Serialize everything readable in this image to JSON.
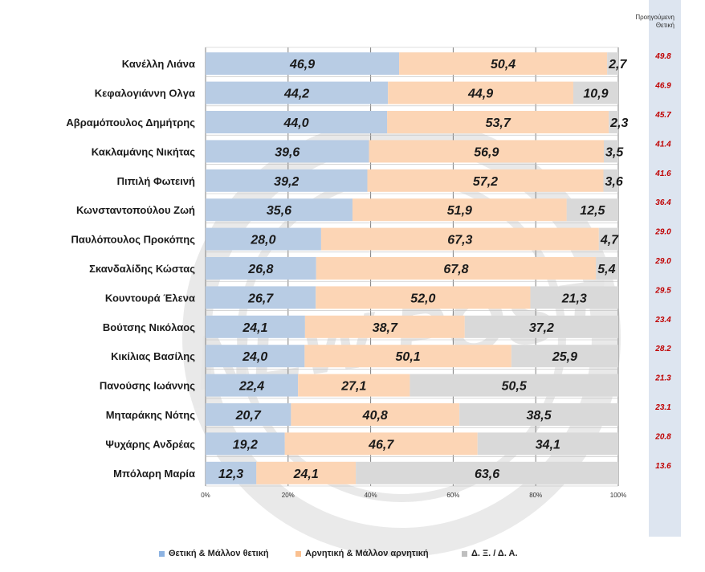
{
  "chart_data": {
    "type": "bar",
    "stacked": true,
    "orientation": "horizontal",
    "categories": [
      "Κανέλλη Λιάνα",
      "Κεφαλογιάννη Ολγα",
      "Αβραμόπουλος Δημήτρης",
      "Κακλαμάνης Νικήτας",
      "Πιπιλή Φωτεινή",
      "Κωνσταντοπούλου Ζωή",
      "Παυλόπουλος Προκόπης",
      "Σκανδαλίδης Κώστας",
      "Κουντουρά Έλενα",
      "Βούτσης Νικόλαος",
      "Κικίλιας Βασίλης",
      "Πανούσης Ιωάννης",
      "Μηταράκης Νότης",
      "Ψυχάρης Ανδρέας",
      "Μπόλαρη Μαρία"
    ],
    "series": [
      {
        "name": "Θετική & Μάλλον θετική",
        "color": "#b8cce4",
        "values": [
          46.9,
          44.2,
          44.0,
          39.6,
          39.2,
          35.6,
          28.0,
          26.8,
          26.7,
          24.1,
          24.0,
          22.4,
          20.7,
          19.2,
          12.3
        ],
        "labels": [
          "46,9",
          "44,2",
          "44,0",
          "39,6",
          "39,2",
          "35,6",
          "28,0",
          "26,8",
          "26,7",
          "24,1",
          "24,0",
          "22,4",
          "20,7",
          "19,2",
          "12,3"
        ]
      },
      {
        "name": "Αρνητική & Μάλλον αρνητική",
        "color": "#fcd5b5",
        "values": [
          50.4,
          44.9,
          53.7,
          56.9,
          57.2,
          51.9,
          67.3,
          67.8,
          52.0,
          38.7,
          50.1,
          27.1,
          40.8,
          46.7,
          24.1
        ],
        "labels": [
          "50,4",
          "44,9",
          "53,7",
          "56,9",
          "57,2",
          "51,9",
          "67,3",
          "67,8",
          "52,0",
          "38,7",
          "50,1",
          "27,1",
          "40,8",
          "46,7",
          "24,1"
        ]
      },
      {
        "name": "Δ. Ξ. / Δ. Α.",
        "color": "#d9d9d9",
        "values": [
          2.7,
          10.9,
          2.3,
          3.5,
          3.6,
          12.5,
          4.7,
          5.4,
          21.3,
          37.2,
          25.9,
          50.5,
          38.5,
          34.1,
          63.6
        ],
        "labels": [
          "2,7",
          "10,9",
          "2,3",
          "3,5",
          "3,6",
          "12,5",
          "4,7",
          "5,4",
          "21,3",
          "37,2",
          "25,9",
          "50,5",
          "38,5",
          "34,1",
          "63,6"
        ]
      }
    ],
    "xlim": [
      0,
      100
    ],
    "x_ticks": [
      "0%",
      "20%",
      "40%",
      "60%",
      "80%",
      "100%"
    ],
    "grid": true,
    "legend_position": "bottom",
    "previous_header": [
      "Προηγούμενη",
      "Θετική"
    ],
    "previous_positive": [
      "49.8",
      "46.9",
      "45.7",
      "41.4",
      "41.6",
      "36.4",
      "29.0",
      "29.0",
      "29.5",
      "23.4",
      "28.2",
      "21.3",
      "23.1",
      "20.8",
      "13.6"
    ],
    "previous_color": "#c00000",
    "watermark_text": "NEW POST"
  }
}
